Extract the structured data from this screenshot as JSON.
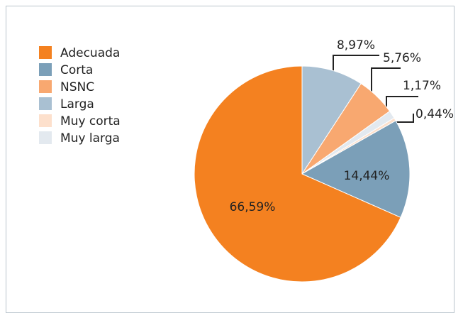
{
  "chart_data": {
    "type": "pie",
    "categories": [
      "Adecuada",
      "Corta",
      "NSNC",
      "Larga",
      "Muy corta",
      "Muy larga"
    ],
    "values": [
      66.59,
      14.44,
      5.76,
      8.97,
      0.44,
      1.17
    ],
    "value_labels": [
      "66,59%",
      "14,44%",
      "5,76%",
      "8,97%",
      "0,44%",
      "1,17%"
    ],
    "colors": [
      "#f48120",
      "#7b9fb8",
      "#f8a870",
      "#a9c0d2",
      "#fde0cc",
      "#e3e9ef"
    ]
  }
}
